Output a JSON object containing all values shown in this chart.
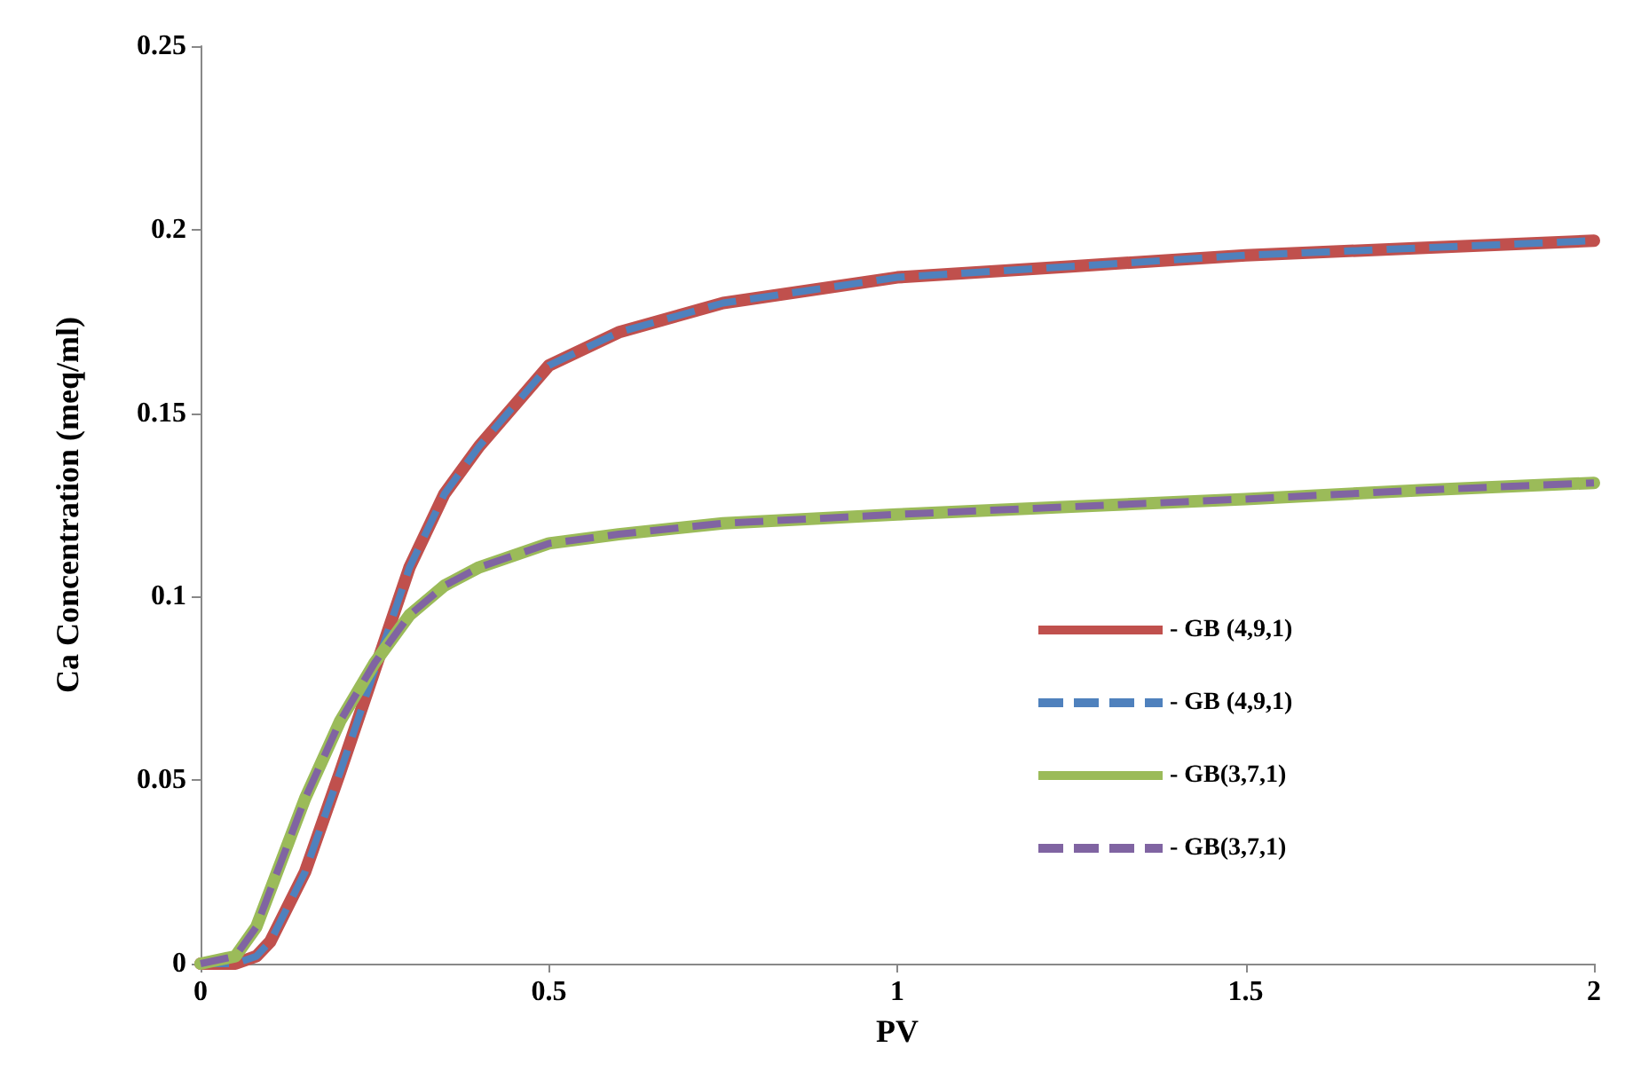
{
  "chart_data": {
    "type": "line",
    "xlabel": "PV",
    "ylabel": "Ca Concentration (meq/ml)",
    "xlim": [
      0,
      2
    ],
    "xticks": [
      0,
      0.5,
      1,
      1.5,
      2
    ],
    "ylim": [
      0,
      0.25
    ],
    "yticks": [
      0,
      0.05,
      0.1,
      0.15,
      0.2,
      0.25
    ],
    "grid": false,
    "legend": "right",
    "marker": "none",
    "x": [
      0,
      0.05,
      0.08,
      0.1,
      0.15,
      0.2,
      0.25,
      0.3,
      0.35,
      0.4,
      0.5,
      0.6,
      0.75,
      1,
      1.25,
      1.5,
      1.75,
      2
    ],
    "series": [
      {
        "name": "- GB (4,9,1)",
        "color": "#c0504d",
        "line_style": "solid",
        "values": [
          0,
          0,
          0.002,
          0.006,
          0.025,
          0.052,
          0.08,
          0.108,
          0.128,
          0.141,
          0.163,
          0.172,
          0.18,
          0.187,
          0.19,
          0.193,
          0.195,
          0.197
        ]
      },
      {
        "name": "- GB (4,9,1)",
        "color": "#4f81bd",
        "line_style": "dashed",
        "values": [
          0,
          0,
          0.002,
          0.006,
          0.025,
          0.052,
          0.08,
          0.108,
          0.128,
          0.141,
          0.163,
          0.172,
          0.18,
          0.187,
          0.19,
          0.193,
          0.195,
          0.197
        ]
      },
      {
        "name": "- GB(3,7,1)",
        "color": "#9bbb59",
        "line_style": "solid",
        "values": [
          0,
          0.002,
          0.01,
          0.02,
          0.045,
          0.066,
          0.082,
          0.095,
          0.103,
          0.108,
          0.1145,
          0.117,
          0.12,
          0.1224,
          0.1245,
          0.1266,
          0.129,
          0.131
        ]
      },
      {
        "name": "- GB(3,7,1)",
        "color": "#8064a2",
        "line_style": "dashed",
        "values": [
          0,
          0.002,
          0.01,
          0.02,
          0.045,
          0.066,
          0.082,
          0.095,
          0.103,
          0.108,
          0.1145,
          0.117,
          0.12,
          0.1224,
          0.1245,
          0.1266,
          0.129,
          0.131
        ]
      }
    ]
  }
}
